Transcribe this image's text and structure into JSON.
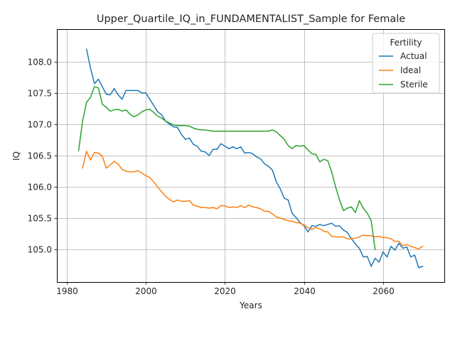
{
  "chart_data": {
    "type": "line",
    "title": "Upper_Quartile_IQ_in_FUNDAMENTALIST_Sample for Female",
    "xlabel": "Years",
    "ylabel": "IQ",
    "xlim": [
      1977.5,
      2075.5
    ],
    "ylim": [
      104.48,
      108.52
    ],
    "xticks": [
      1980,
      2000,
      2020,
      2040,
      2060
    ],
    "yticks": [
      105.0,
      105.5,
      106.0,
      106.5,
      107.0,
      107.5,
      108.0
    ],
    "ytick_labels": [
      "105.0",
      "105.5",
      "106.0",
      "106.5",
      "107.0",
      "107.5",
      "108.0"
    ],
    "grid": true,
    "legend": {
      "title": "Fertility",
      "position": "top-right"
    },
    "series": [
      {
        "name": "Actual",
        "color": "#1f77b4",
        "x": [
          1985,
          1986,
          1987,
          1988,
          1989,
          1990,
          1991,
          1992,
          1993,
          1994,
          1995,
          1996,
          1997,
          1998,
          1999,
          2000,
          2001,
          2002,
          2003,
          2004,
          2005,
          2006,
          2007,
          2008,
          2009,
          2010,
          2011,
          2012,
          2013,
          2014,
          2015,
          2016,
          2017,
          2018,
          2019,
          2020,
          2021,
          2022,
          2023,
          2024,
          2025,
          2026,
          2027,
          2028,
          2029,
          2030,
          2031,
          2032,
          2033,
          2034,
          2035,
          2036,
          2037,
          2038,
          2039,
          2040,
          2041,
          2042,
          2043,
          2044,
          2045,
          2046,
          2047,
          2048,
          2049,
          2050,
          2051,
          2052,
          2053,
          2054,
          2055,
          2056,
          2057,
          2058,
          2059,
          2060,
          2061,
          2062,
          2063,
          2064,
          2065,
          2066,
          2067,
          2068,
          2069,
          2070
        ],
        "values": [
          108.2,
          107.9,
          107.65,
          107.72,
          107.6,
          107.48,
          107.47,
          107.57,
          107.47,
          107.4,
          107.54,
          107.54,
          107.54,
          107.54,
          107.5,
          107.5,
          107.4,
          107.3,
          107.2,
          107.15,
          107.05,
          107.0,
          106.96,
          106.95,
          106.84,
          106.76,
          106.78,
          106.68,
          106.65,
          106.57,
          106.56,
          106.5,
          106.6,
          106.6,
          106.69,
          106.65,
          106.61,
          106.64,
          106.61,
          106.64,
          106.54,
          106.55,
          106.53,
          106.48,
          106.45,
          106.37,
          106.33,
          106.27,
          106.08,
          105.97,
          105.82,
          105.79,
          105.58,
          105.51,
          105.43,
          105.38,
          105.28,
          105.38,
          105.37,
          105.4,
          105.38,
          105.4,
          105.42,
          105.37,
          105.38,
          105.31,
          105.27,
          105.17,
          105.09,
          105.02,
          104.88,
          104.89,
          104.73,
          104.86,
          104.8,
          104.96,
          104.88,
          105.05,
          104.99,
          105.1,
          105.02,
          105.04,
          104.88,
          104.91,
          104.71,
          104.73
        ]
      },
      {
        "name": "Ideal",
        "color": "#ff7f0e",
        "x": [
          1984,
          1985,
          1986,
          1987,
          1988,
          1989,
          1990,
          1991,
          1992,
          1993,
          1994,
          1995,
          1996,
          1997,
          1998,
          1999,
          2000,
          2001,
          2002,
          2003,
          2004,
          2005,
          2006,
          2007,
          2008,
          2009,
          2010,
          2011,
          2012,
          2013,
          2014,
          2015,
          2016,
          2017,
          2018,
          2019,
          2020,
          2021,
          2022,
          2023,
          2024,
          2025,
          2026,
          2027,
          2028,
          2029,
          2030,
          2031,
          2032,
          2033,
          2034,
          2035,
          2036,
          2037,
          2038,
          2039,
          2040,
          2041,
          2042,
          2043,
          2044,
          2045,
          2046,
          2047,
          2048,
          2049,
          2050,
          2051,
          2052,
          2053,
          2054,
          2055,
          2056,
          2057,
          2058,
          2059,
          2060,
          2061,
          2062,
          2063,
          2064,
          2065,
          2066,
          2067,
          2068,
          2069,
          2070
        ],
        "values": [
          106.3,
          106.57,
          106.43,
          106.55,
          106.54,
          106.49,
          106.3,
          106.35,
          106.41,
          106.36,
          106.28,
          106.25,
          106.24,
          106.24,
          106.26,
          106.22,
          106.18,
          106.15,
          106.08,
          106.0,
          105.92,
          105.85,
          105.8,
          105.76,
          105.79,
          105.77,
          105.77,
          105.78,
          105.71,
          105.69,
          105.67,
          105.67,
          105.66,
          105.67,
          105.65,
          105.7,
          105.7,
          105.67,
          105.68,
          105.67,
          105.7,
          105.67,
          105.71,
          105.68,
          105.67,
          105.65,
          105.61,
          105.61,
          105.57,
          105.52,
          105.5,
          105.48,
          105.46,
          105.45,
          105.43,
          105.42,
          105.39,
          105.35,
          105.32,
          105.35,
          105.33,
          105.29,
          105.28,
          105.21,
          105.2,
          105.2,
          105.2,
          105.17,
          105.17,
          105.18,
          105.2,
          105.23,
          105.22,
          105.22,
          105.2,
          105.21,
          105.19,
          105.19,
          105.17,
          105.13,
          105.13,
          105.06,
          105.08,
          105.05,
          105.03,
          105.01,
          105.05
        ]
      },
      {
        "name": "Sterile",
        "color": "#2ca02c",
        "x": [
          1983,
          1984,
          1985,
          1986,
          1987,
          1988,
          1989,
          1990,
          1991,
          1992,
          1993,
          1994,
          1995,
          1996,
          1997,
          1998,
          1999,
          2000,
          2001,
          2002,
          2003,
          2004,
          2005,
          2006,
          2007,
          2008,
          2009,
          2010,
          2011,
          2012,
          2013,
          2014,
          2015,
          2016,
          2017,
          2018,
          2019,
          2020,
          2021,
          2022,
          2023,
          2024,
          2025,
          2026,
          2027,
          2028,
          2029,
          2030,
          2031,
          2032,
          2033,
          2034,
          2035,
          2036,
          2037,
          2038,
          2039,
          2040,
          2041,
          2042,
          2043,
          2044,
          2045,
          2046,
          2047,
          2048,
          2049,
          2050,
          2051,
          2052,
          2053,
          2054,
          2055,
          2056,
          2057,
          2058
        ],
        "values": [
          106.58,
          107.05,
          107.35,
          107.43,
          107.6,
          107.58,
          107.32,
          107.27,
          107.21,
          107.23,
          107.24,
          107.21,
          107.23,
          107.16,
          107.12,
          107.15,
          107.2,
          107.23,
          107.24,
          107.19,
          107.13,
          107.1,
          107.05,
          107.02,
          106.99,
          106.98,
          106.98,
          106.98,
          106.97,
          106.94,
          106.92,
          106.91,
          106.91,
          106.9,
          106.89,
          106.89,
          106.89,
          106.89,
          106.89,
          106.89,
          106.89,
          106.89,
          106.89,
          106.89,
          106.89,
          106.89,
          106.89,
          106.89,
          106.89,
          106.91,
          106.88,
          106.82,
          106.76,
          106.66,
          106.61,
          106.66,
          106.65,
          106.66,
          106.59,
          106.53,
          106.52,
          106.4,
          106.44,
          106.42,
          106.24,
          106.0,
          105.79,
          105.62,
          105.66,
          105.68,
          105.59,
          105.78,
          105.66,
          105.58,
          105.46,
          105.0
        ]
      }
    ]
  }
}
